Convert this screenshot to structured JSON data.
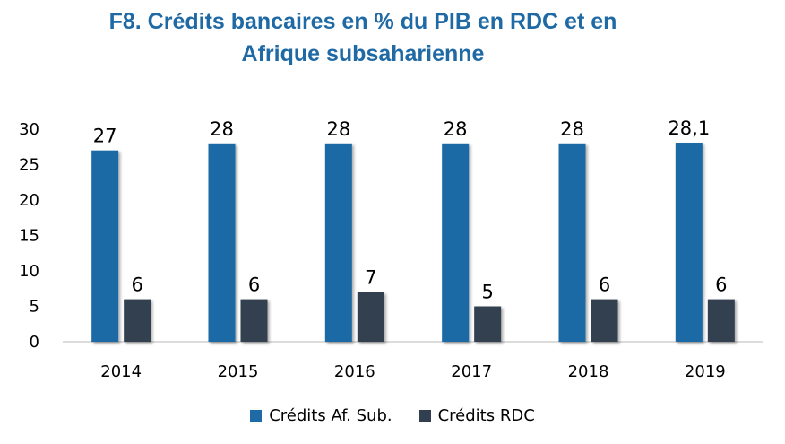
{
  "title_line1": "F8. Crédits bancaires en % du PIB en RDC et en",
  "title_line2": "Afrique subsaharienne",
  "chart_data": {
    "type": "bar",
    "title": "F8. Crédits bancaires en % du PIB en RDC et en Afrique subsaharienne",
    "categories": [
      "2014",
      "2015",
      "2016",
      "2017",
      "2018",
      "2019"
    ],
    "series": [
      {
        "name": "Crédits Af. Sub.",
        "values": [
          27,
          28,
          28,
          28,
          28,
          28.1
        ],
        "labels": [
          "27",
          "28",
          "28",
          "28",
          "28",
          "28,1"
        ],
        "color": "#1f6aa5"
      },
      {
        "name": "Crédits RDC",
        "values": [
          6,
          6,
          7,
          5,
          6,
          6
        ],
        "labels": [
          "6",
          "6",
          "7",
          "5",
          "6",
          "6"
        ],
        "color": "#323f50"
      }
    ],
    "yticks": [
      "0",
      "5",
      "10",
      "15",
      "20",
      "25",
      "30"
    ],
    "ylim": [
      0,
      30
    ],
    "grid": false,
    "legend": "bottom"
  }
}
